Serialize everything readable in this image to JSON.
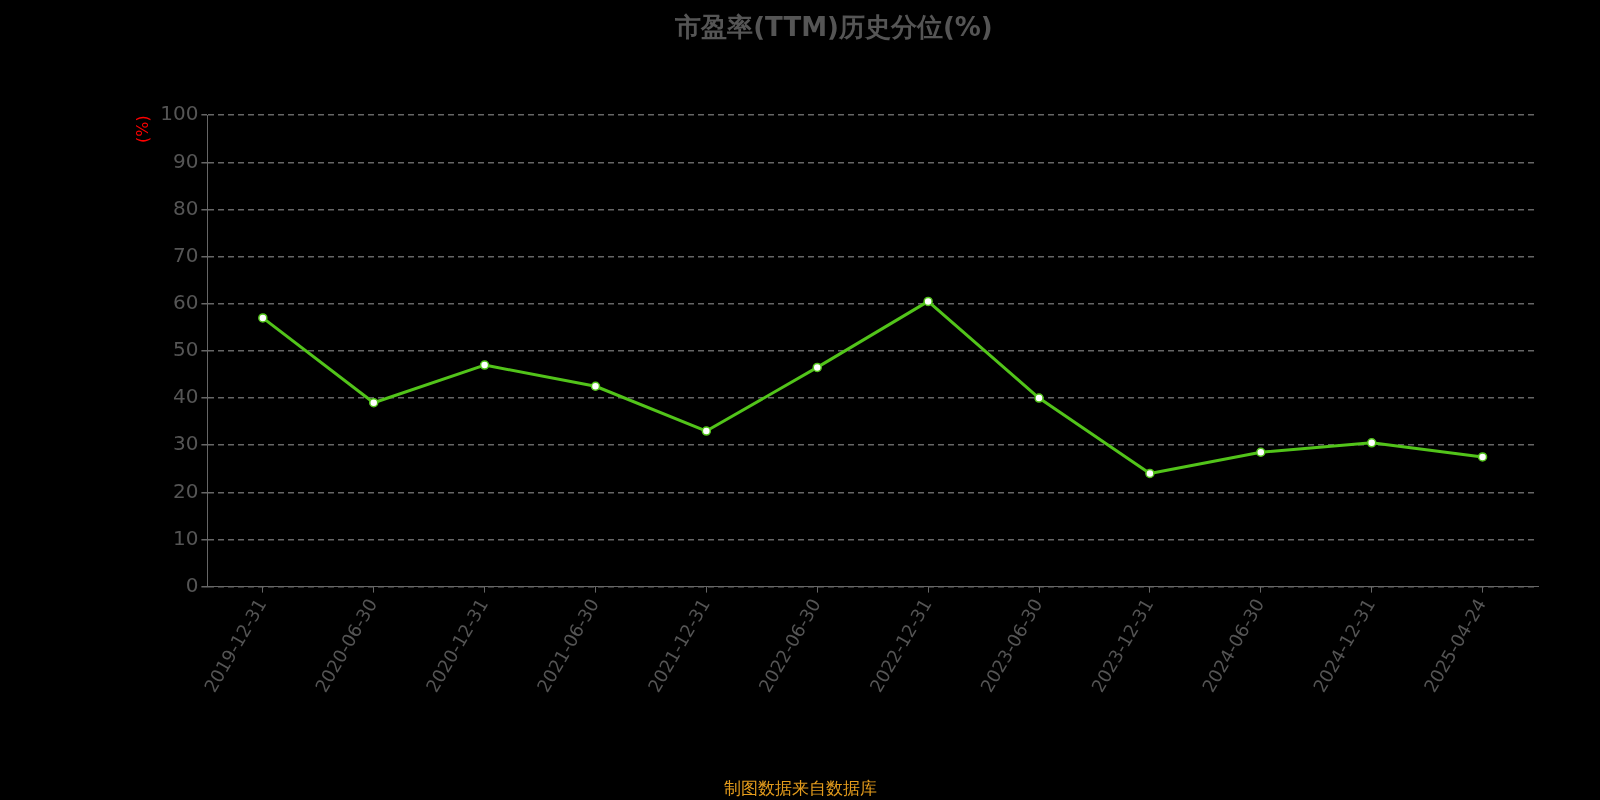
{
  "chart_data": {
    "type": "line",
    "title": "市盈率(TTM)历史分位(%)",
    "ylabel": "(%)",
    "categories": [
      "2019-12-31",
      "2020-06-30",
      "2020-12-31",
      "2021-06-30",
      "2021-12-31",
      "2022-06-30",
      "2022-12-31",
      "2023-06-30",
      "2023-12-31",
      "2024-06-30",
      "2024-12-31",
      "2025-04-24"
    ],
    "series": [
      {
        "color": "#52c41a",
        "values": [
          57,
          39,
          47,
          42.5,
          33,
          46.5,
          60.5,
          40,
          24,
          28.5,
          30.5,
          27.5
        ]
      }
    ],
    "ylim": [
      0,
      100
    ],
    "yticks": [
      0,
      10,
      20,
      30,
      40,
      50,
      60,
      70,
      80,
      90,
      100
    ],
    "grid": "y",
    "legend": false,
    "marker": "circle",
    "line_style": "solid",
    "annotations": [
      "制图数据来自数据库"
    ]
  }
}
